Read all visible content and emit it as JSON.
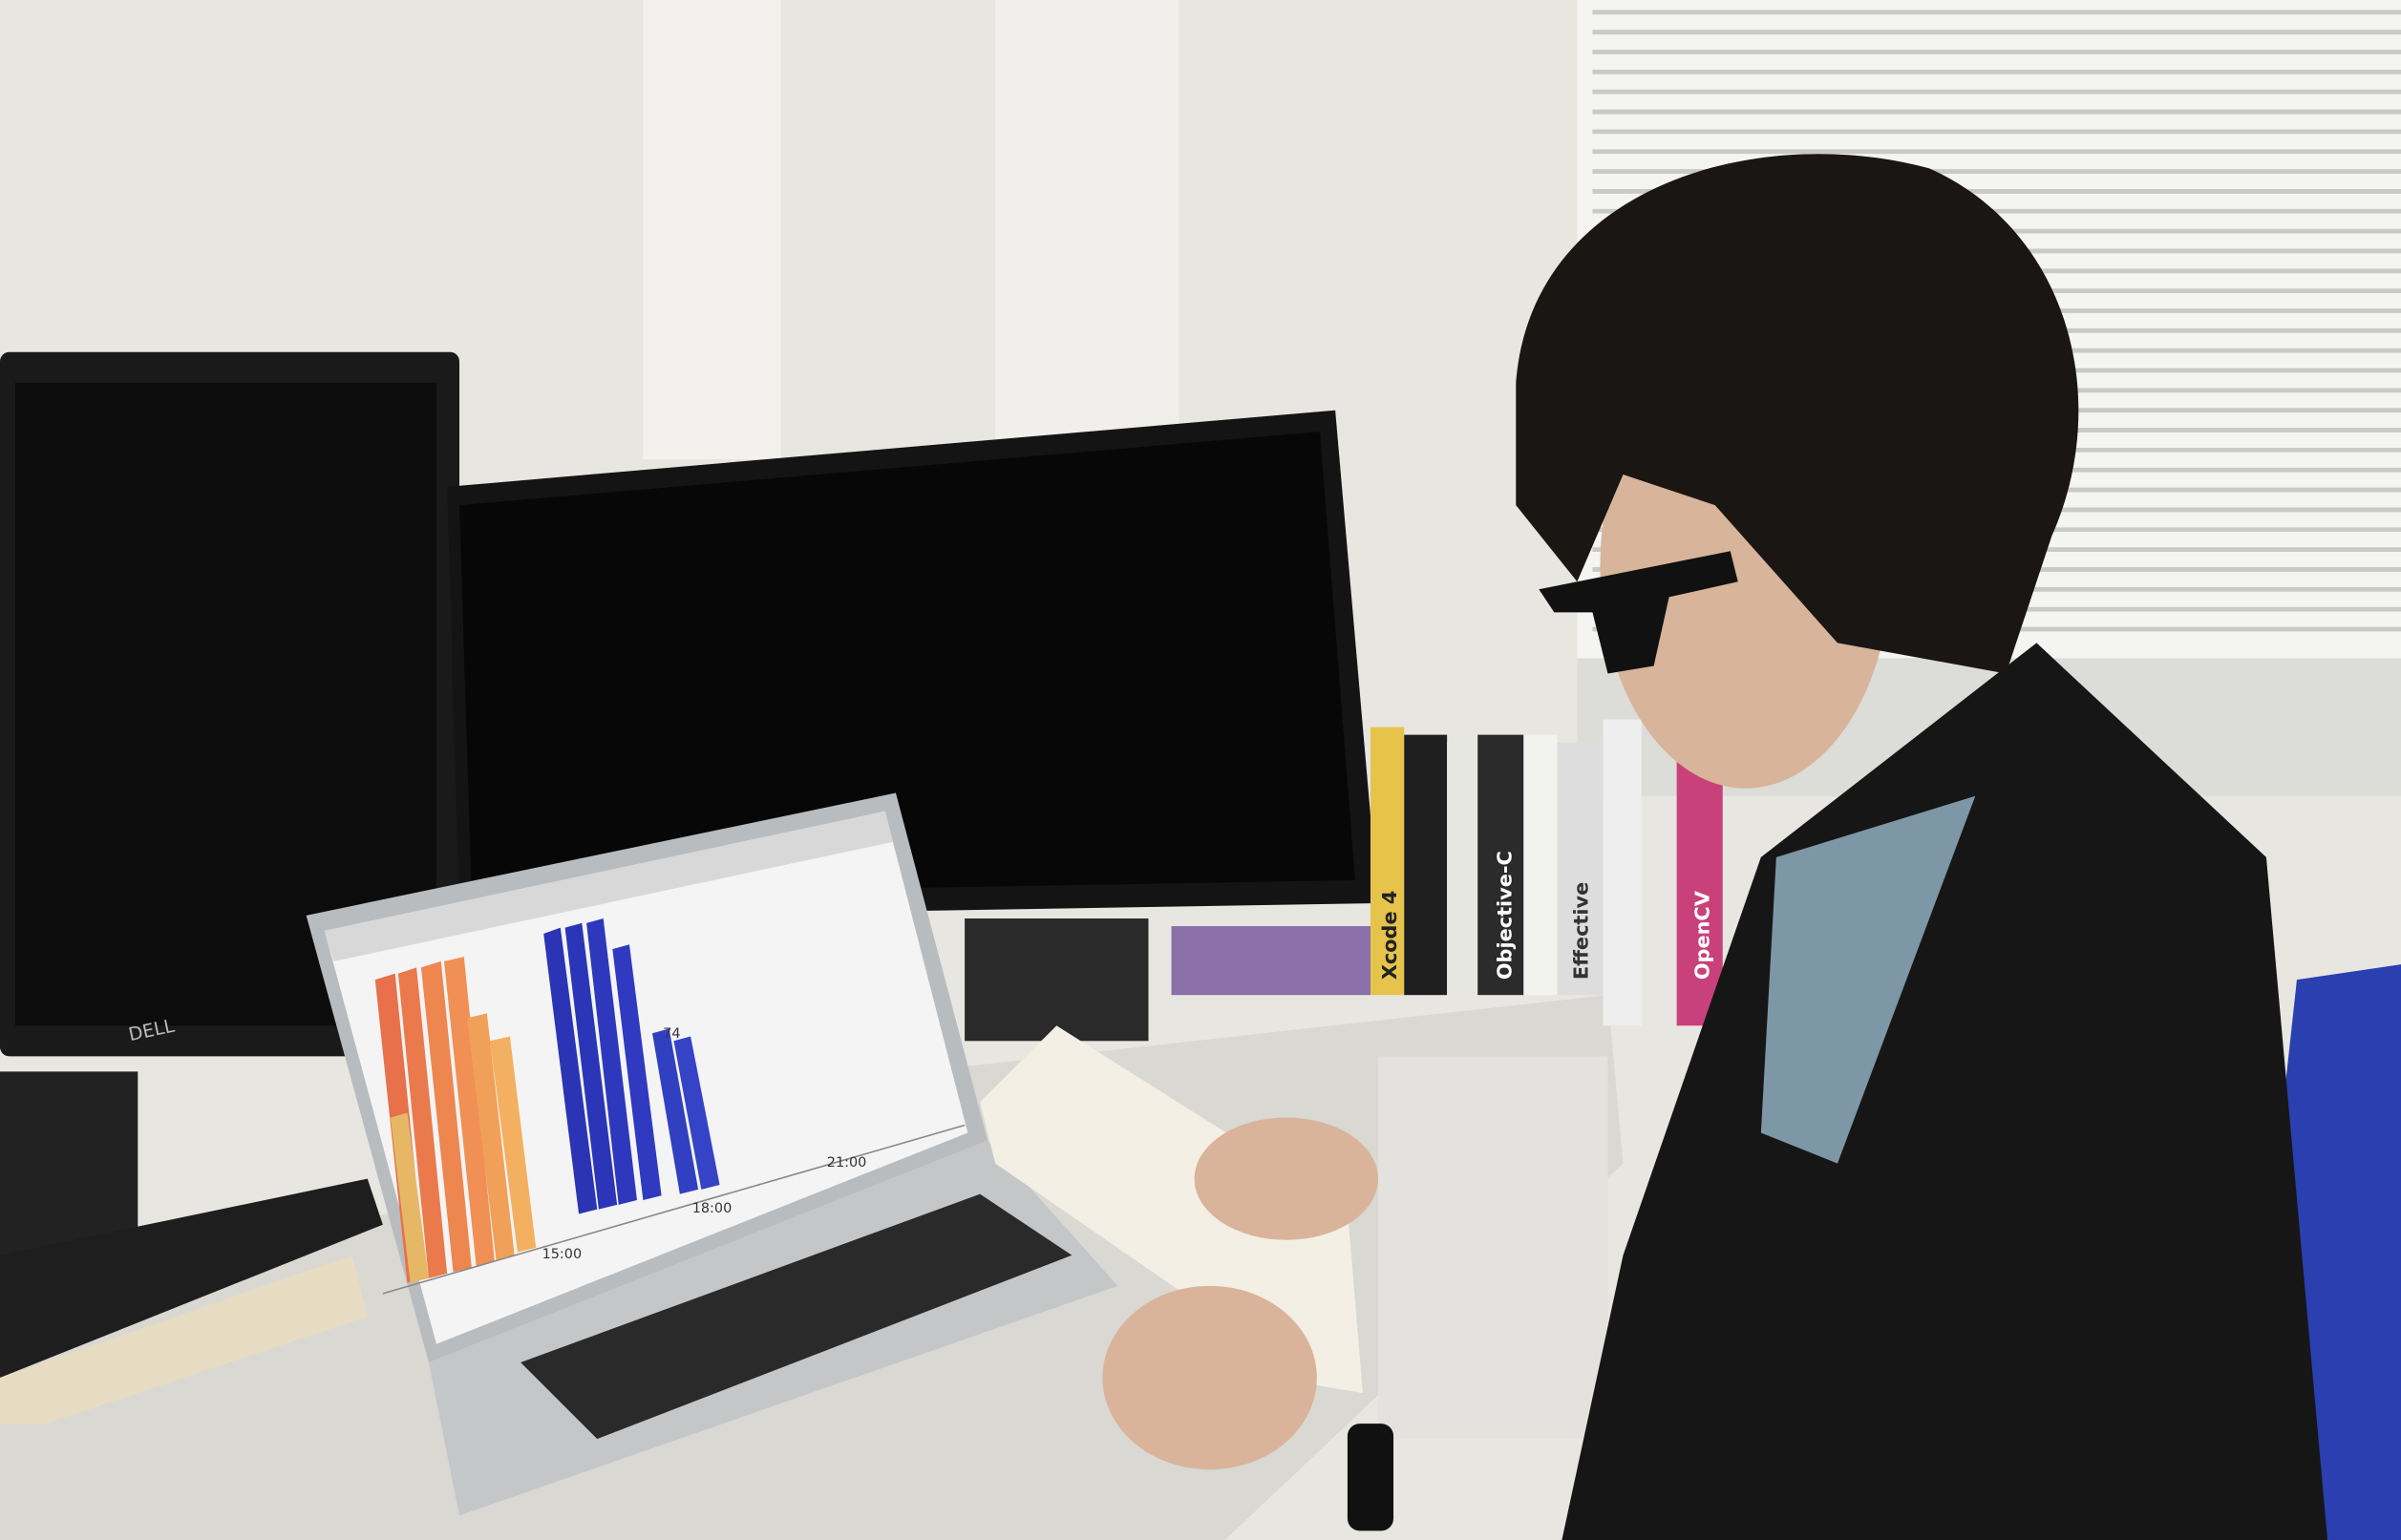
{
  "laptop_screen": {
    "bar_label": "74",
    "time_labels": [
      "15:00",
      "18:00",
      "21:00"
    ]
  },
  "monitor_brand": "DELL",
  "book_spines": [
    "Xcode 4",
    "Objective-C",
    "Effective",
    "OpenCV"
  ]
}
